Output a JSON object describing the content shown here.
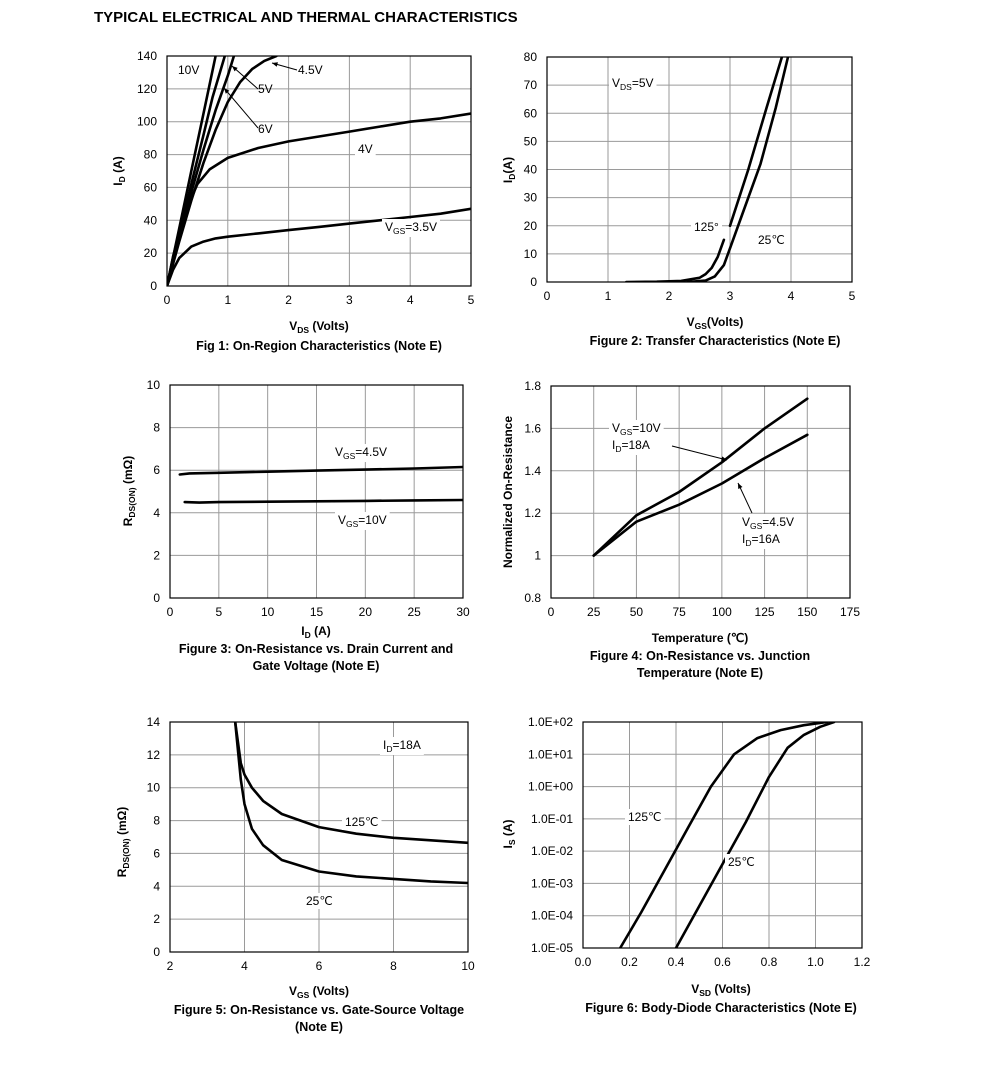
{
  "page_title": "TYPICAL ELECTRICAL AND THERMAL CHARACTERISTICS",
  "chart_data": [
    {
      "type": "line",
      "caption": "Fig 1: On-Region Characteristics (Note E)",
      "ylabel": "ID (A)",
      "xlabel": "VDS (Volts)",
      "xlim": [
        0,
        5
      ],
      "ylim": [
        0,
        140
      ],
      "x_ticks": [
        "0",
        "1",
        "2",
        "3",
        "4",
        "5"
      ],
      "y_ticks": [
        "0",
        "20",
        "40",
        "60",
        "80",
        "100",
        "120",
        "140"
      ],
      "series": [
        {
          "name": "10V",
          "label": "10V",
          "x": [
            0,
            0.2,
            0.4,
            0.6,
            0.8
          ],
          "y": [
            0,
            35,
            70,
            105,
            140
          ]
        },
        {
          "name": "6V",
          "label": "6V",
          "x": [
            0,
            0.2,
            0.4,
            0.6,
            0.75,
            0.95
          ],
          "y": [
            0,
            32,
            62,
            92,
            115,
            140
          ]
        },
        {
          "name": "5V",
          "label": "5V",
          "x": [
            0,
            0.2,
            0.4,
            0.6,
            0.8,
            1.0,
            1.1
          ],
          "y": [
            0,
            30,
            57,
            83,
            107,
            128,
            140
          ]
        },
        {
          "name": "4.5V",
          "label": "4.5V",
          "x": [
            0,
            0.2,
            0.4,
            0.6,
            0.8,
            1.0,
            1.2,
            1.4,
            1.6,
            1.8
          ],
          "y": [
            0,
            27,
            52,
            75,
            95,
            112,
            124,
            132,
            137,
            140
          ]
        },
        {
          "name": "4V",
          "label": "4V",
          "x": [
            0,
            0.1,
            0.3,
            0.5,
            0.7,
            1.0,
            1.5,
            2,
            2.5,
            3,
            3.5,
            4,
            4.5,
            5
          ],
          "y": [
            0,
            18,
            45,
            62,
            71,
            78,
            84,
            88,
            91,
            94,
            97,
            100,
            102,
            105
          ]
        },
        {
          "name": "3.5V",
          "label": "VGS=3.5V",
          "x": [
            0,
            0.1,
            0.2,
            0.4,
            0.6,
            0.8,
            1,
            1.5,
            2,
            2.5,
            3,
            3.5,
            4,
            4.5,
            5
          ],
          "y": [
            0,
            10,
            17,
            24,
            27,
            29,
            30,
            32,
            34,
            36,
            38,
            40,
            42,
            44,
            47
          ]
        }
      ]
    },
    {
      "type": "line",
      "caption": "Figure 2: Transfer Characteristics (Note E)",
      "ylabel": "ID(A)",
      "xlabel": "VGS(Volts)",
      "xlim": [
        0,
        5
      ],
      "ylim": [
        0,
        80
      ],
      "x_ticks": [
        "0",
        "1",
        "2",
        "3",
        "4",
        "5"
      ],
      "y_ticks": [
        "0",
        "10",
        "20",
        "30",
        "40",
        "50",
        "60",
        "70",
        "80"
      ],
      "annotation": "VDS=5V",
      "series": [
        {
          "name": "125°",
          "label": "125°",
          "x": [
            1.3,
            1.8,
            2.2,
            2.5,
            2.6,
            2.7,
            2.8,
            2.9
          ],
          "y": [
            0,
            0.1,
            0.4,
            1.5,
            2.8,
            5,
            9,
            15
          ]
        },
        {
          "name": "25℃",
          "label": "25℃",
          "x": [
            2.3,
            2.6,
            2.75,
            2.9,
            3.0,
            3.2,
            3.5,
            3.75,
            3.95
          ],
          "y": [
            0,
            0.5,
            2,
            6,
            12,
            24,
            42,
            62,
            80
          ]
        },
        {
          "name": "125° upper",
          "label": "",
          "x": [
            3.0,
            3.3,
            3.6,
            3.85
          ],
          "y": [
            20,
            40,
            62,
            80
          ]
        }
      ]
    },
    {
      "type": "line",
      "caption": "Figure 3: On-Resistance vs. Drain Current and Gate Voltage (Note E)",
      "caption_lines": [
        "Figure 3: On-Resistance vs. Drain Current and",
        "Gate Voltage (Note E)"
      ],
      "ylabel": "RDS(ON) (mΩ)",
      "xlabel": "ID (A)",
      "xlim": [
        0,
        30
      ],
      "ylim": [
        0,
        10
      ],
      "x_ticks": [
        "0",
        "5",
        "10",
        "15",
        "20",
        "25",
        "30"
      ],
      "y_ticks": [
        "0",
        "2",
        "4",
        "6",
        "8",
        "10"
      ],
      "series": [
        {
          "name": "4.5V",
          "label": "VGS=4.5V",
          "x": [
            1,
            2,
            5,
            10,
            15,
            20,
            25,
            30
          ],
          "y": [
            5.8,
            5.85,
            5.88,
            5.93,
            5.98,
            6.03,
            6.08,
            6.15
          ]
        },
        {
          "name": "10V",
          "label": "VGS=10V",
          "x": [
            1.5,
            3,
            5,
            10,
            15,
            20,
            25,
            30
          ],
          "y": [
            4.5,
            4.48,
            4.5,
            4.52,
            4.54,
            4.56,
            4.58,
            4.6
          ]
        }
      ]
    },
    {
      "type": "line",
      "caption": "Figure 4: On-Resistance vs. Junction Temperature (Note E)",
      "caption_lines": [
        "Figure 4: On-Resistance vs. Junction",
        "Temperature (Note E)"
      ],
      "ylabel": "Normalized On-Resistance",
      "xlabel": "Temperature (℃)",
      "xlim": [
        0,
        175
      ],
      "ylim": [
        0.8,
        1.8
      ],
      "x_ticks": [
        "0",
        "25",
        "50",
        "75",
        "100",
        "125",
        "150",
        "175"
      ],
      "y_ticks": [
        "0.8",
        "1",
        "1.2",
        "1.4",
        "1.6",
        "1.8"
      ],
      "series": [
        {
          "name": "VGS=10V ID=18A",
          "label": "VGS=10V",
          "label2": "ID=18A",
          "x": [
            25,
            50,
            75,
            100,
            125,
            150
          ],
          "y": [
            1.0,
            1.19,
            1.3,
            1.44,
            1.6,
            1.74
          ]
        },
        {
          "name": "VGS=4.5V ID=16A",
          "label": "VGS=4.5V",
          "label2": "ID=16A",
          "x": [
            25,
            50,
            75,
            100,
            125,
            150
          ],
          "y": [
            1.0,
            1.16,
            1.24,
            1.34,
            1.46,
            1.57
          ]
        }
      ]
    },
    {
      "type": "line",
      "caption": "Figure 5: On-Resistance vs. Gate-Source Voltage (Note E)",
      "caption_lines": [
        "Figure 5: On-Resistance vs. Gate-Source Voltage",
        "(Note E)"
      ],
      "ylabel": "RDS(ON) (mΩ)",
      "xlabel": "VGS (Volts)",
      "xlim": [
        2,
        10
      ],
      "ylim": [
        0,
        14
      ],
      "x_ticks": [
        "2",
        "4",
        "6",
        "8",
        "10"
      ],
      "y_ticks": [
        "0",
        "2",
        "4",
        "6",
        "8",
        "10",
        "12",
        "14"
      ],
      "annotation": "ID=18A",
      "series": [
        {
          "name": "125℃",
          "label": "125℃",
          "x": [
            3.75,
            3.9,
            4.0,
            4.2,
            4.5,
            5,
            6,
            7,
            8,
            9,
            10
          ],
          "y": [
            14,
            11.5,
            10.8,
            10,
            9.2,
            8.4,
            7.6,
            7.2,
            6.95,
            6.8,
            6.65
          ]
        },
        {
          "name": "25℃",
          "label": "25℃",
          "x": [
            3.75,
            3.9,
            4.0,
            4.2,
            4.5,
            5,
            6,
            7,
            8,
            9,
            10
          ],
          "y": [
            14,
            10.5,
            9,
            7.5,
            6.5,
            5.6,
            4.9,
            4.6,
            4.45,
            4.3,
            4.2
          ]
        }
      ]
    },
    {
      "type": "line",
      "caption": "Figure 6: Body-Diode Characteristics (Note E)",
      "ylabel": "IS (A)",
      "xlabel": "VSD (Volts)",
      "xlim": [
        0,
        1.2
      ],
      "ylim_log10": [
        -5,
        2
      ],
      "x_ticks": [
        "0.0",
        "0.2",
        "0.4",
        "0.6",
        "0.8",
        "1.0",
        "1.2"
      ],
      "y_ticks": [
        "1.0E-05",
        "1.0E-04",
        "1.0E-03",
        "1.0E-02",
        "1.0E-01",
        "1.0E+00",
        "1.0E+01",
        "1.0E+02"
      ],
      "series": [
        {
          "name": "125℃",
          "label": "125℃",
          "x": [
            0.16,
            0.25,
            0.35,
            0.45,
            0.55,
            0.65,
            0.75,
            0.85,
            0.95,
            1.05
          ],
          "log10_y": [
            -5,
            -3.9,
            -2.6,
            -1.3,
            0,
            1,
            1.5,
            1.75,
            1.9,
            2
          ]
        },
        {
          "name": "25℃",
          "label": "25℃",
          "x": [
            0.4,
            0.5,
            0.6,
            0.7,
            0.8,
            0.88,
            0.95,
            1.02,
            1.08
          ],
          "log10_y": [
            -5,
            -3.7,
            -2.4,
            -1.1,
            0.3,
            1.2,
            1.6,
            1.85,
            2
          ]
        }
      ]
    }
  ]
}
